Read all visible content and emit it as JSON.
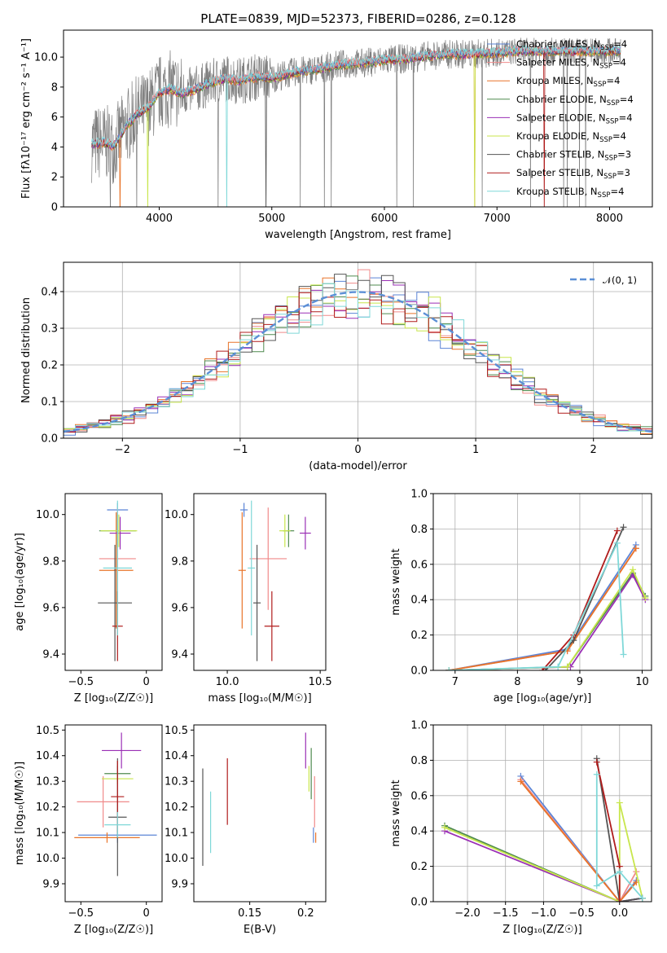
{
  "figure_title": "PLATE=0839, MJD=52373, FIBERID=0286, z=0.128",
  "colors": {
    "chabrier_miles": "#5b84d6",
    "salpeter_miles": "#f08a8a",
    "kroupa_miles": "#e8742a",
    "chabrier_elodie": "#4f8a4f",
    "salpeter_elodie": "#9a2fb5",
    "kroupa_elodie": "#c8e64c",
    "chabrier_stelib": "#555555",
    "salpeter_stelib": "#b01c1c",
    "kroupa_stelib": "#7fd8d8",
    "data": "#7f7f7f",
    "gaussian": "#5b8fd6"
  },
  "legend": [
    {
      "label": "Chabrier MILES, N",
      "sub": "SSP",
      "suffix": "=4",
      "color_key": "chabrier_miles"
    },
    {
      "label": "Salpeter MILES, N",
      "sub": "SSP",
      "suffix": "=4",
      "color_key": "salpeter_miles"
    },
    {
      "label": "Kroupa MILES, N",
      "sub": "SSP",
      "suffix": "=4",
      "color_key": "kroupa_miles"
    },
    {
      "label": "Chabrier ELODIE, N",
      "sub": "SSP",
      "suffix": "=4",
      "color_key": "chabrier_elodie"
    },
    {
      "label": "Salpeter ELODIE, N",
      "sub": "SSP",
      "suffix": "=4",
      "color_key": "salpeter_elodie"
    },
    {
      "label": "Kroupa ELODIE, N",
      "sub": "SSP",
      "suffix": "=4",
      "color_key": "kroupa_elodie"
    },
    {
      "label": "Chabrier STELIB, N",
      "sub": "SSP",
      "suffix": "=3",
      "color_key": "chabrier_stelib"
    },
    {
      "label": "Salpeter STELIB, N",
      "sub": "SSP",
      "suffix": "=3",
      "color_key": "salpeter_stelib"
    },
    {
      "label": "Kroupa STELIB, N",
      "sub": "SSP",
      "suffix": "=4",
      "color_key": "kroupa_stelib"
    }
  ],
  "chart_data": [
    {
      "id": "spectrum",
      "type": "line",
      "xlabel": "wavelength [Angstrom, rest frame]",
      "ylabel": "Flux [fλ10⁻¹⁷ erg cm⁻² s⁻¹ A⁻¹]",
      "xlim": [
        3150,
        8380
      ],
      "ylim": [
        0,
        11.8
      ],
      "xticks": [
        4000,
        5000,
        6000,
        7000,
        8000
      ],
      "yticks": [
        0,
        2,
        4,
        6,
        8,
        10
      ],
      "continuum": {
        "x": [
          3400,
          3500,
          3600,
          3700,
          3800,
          3900,
          4000,
          4100,
          4200,
          4300,
          4400,
          4500,
          4600,
          4700,
          4800,
          4900,
          5000,
          5200,
          5400,
          5600,
          5800,
          6000,
          6200,
          6400,
          6600,
          6800,
          7000,
          7200
        ],
        "y": [
          4.2,
          4.3,
          4.1,
          5.3,
          6.2,
          6.6,
          7.6,
          7.9,
          7.6,
          7.8,
          8.1,
          8.4,
          8.6,
          8.4,
          8.6,
          8.7,
          8.6,
          9.0,
          9.2,
          9.5,
          9.6,
          9.8,
          9.9,
          10.1,
          10.2,
          10.2,
          10.3,
          10.4
        ]
      },
      "data_range": [
        3400,
        8100
      ]
    },
    {
      "id": "residuals",
      "type": "histogram",
      "xlabel": "(data-model)/error",
      "ylabel": "Normed distribution",
      "xlim": [
        -2.5,
        2.5
      ],
      "ylim": [
        0,
        0.48
      ],
      "xticks": [
        -2,
        -1,
        0,
        1,
        2
      ],
      "yticks": [
        0.0,
        0.1,
        0.2,
        0.3,
        0.4
      ],
      "gaussian_label": "𝒩(0, 1)",
      "bin_width": 0.1
    },
    {
      "id": "age_vs_Z",
      "type": "errorbar",
      "xlabel": "Z [log₁₀(Z/Z☉)]",
      "ylabel": "age  [log₁₀(age/yr)]",
      "xlim": [
        -0.62,
        0.12
      ],
      "ylim": [
        9.33,
        10.09
      ],
      "xticks": [
        -0.5,
        0.0
      ],
      "yticks": [
        9.4,
        9.6,
        9.8,
        10.0
      ],
      "points": [
        {
          "series": "chabrier_miles",
          "x": -0.22,
          "xerr": 0.08,
          "y": 10.02,
          "yerr": 0.03
        },
        {
          "series": "salpeter_miles",
          "x": -0.22,
          "xerr": 0.14,
          "y": 9.81,
          "yerr": 0.22
        },
        {
          "series": "kroupa_miles",
          "x": -0.23,
          "xerr": 0.13,
          "y": 9.76,
          "yerr": 0.25
        },
        {
          "series": "chabrier_elodie",
          "x": -0.22,
          "xerr": 0.14,
          "y": 9.93,
          "yerr": 0.07
        },
        {
          "series": "salpeter_elodie",
          "x": -0.2,
          "xerr": 0.08,
          "y": 9.92,
          "yerr": 0.07
        },
        {
          "series": "kroupa_elodie",
          "x": -0.21,
          "xerr": 0.14,
          "y": 9.93,
          "yerr": 0.07
        },
        {
          "series": "chabrier_stelib",
          "x": -0.24,
          "xerr": 0.13,
          "y": 9.62,
          "yerr": 0.25
        },
        {
          "series": "salpeter_stelib",
          "x": -0.22,
          "xerr": 0.04,
          "y": 9.52,
          "yerr": 0.15
        },
        {
          "series": "kroupa_stelib",
          "x": -0.22,
          "xerr": 0.11,
          "y": 9.77,
          "yerr": 0.29
        }
      ]
    },
    {
      "id": "age_vs_mass",
      "type": "errorbar",
      "xlabel": "mass [log₁₀(M/M☉)]",
      "ylabel": "",
      "xlim": [
        9.82,
        10.53
      ],
      "ylim": [
        9.33,
        10.09
      ],
      "xticks": [
        10.0,
        10.5
      ],
      "yticks": [
        9.4,
        9.6,
        9.8,
        10.0
      ],
      "points": [
        {
          "series": "chabrier_miles",
          "x": 10.09,
          "xerr": 0.02,
          "y": 10.02,
          "yerr": 0.03
        },
        {
          "series": "salpeter_miles",
          "x": 10.22,
          "xerr": 0.1,
          "y": 9.81,
          "yerr": 0.22
        },
        {
          "series": "kroupa_miles",
          "x": 10.08,
          "xerr": 0.02,
          "y": 9.76,
          "yerr": 0.25
        },
        {
          "series": "chabrier_elodie",
          "x": 10.33,
          "xerr": 0.03,
          "y": 9.93,
          "yerr": 0.07
        },
        {
          "series": "salpeter_elodie",
          "x": 10.42,
          "xerr": 0.03,
          "y": 9.92,
          "yerr": 0.07
        },
        {
          "series": "kroupa_elodie",
          "x": 10.31,
          "xerr": 0.03,
          "y": 9.93,
          "yerr": 0.07
        },
        {
          "series": "chabrier_stelib",
          "x": 10.16,
          "xerr": 0.02,
          "y": 9.62,
          "yerr": 0.25
        },
        {
          "series": "salpeter_stelib",
          "x": 10.24,
          "xerr": 0.04,
          "y": 9.52,
          "yerr": 0.15
        },
        {
          "series": "kroupa_stelib",
          "x": 10.13,
          "xerr": 0.02,
          "y": 9.77,
          "yerr": 0.29
        }
      ]
    },
    {
      "id": "mass_weight_vs_age",
      "type": "line",
      "xlabel": "age  [log₁₀(age/yr)]",
      "ylabel": "mass weight",
      "xlim": [
        6.65,
        10.15
      ],
      "ylim": [
        0,
        1.0
      ],
      "xticks": [
        7,
        8,
        9,
        10
      ],
      "yticks": [
        0.0,
        0.2,
        0.4,
        0.6,
        0.8,
        1.0
      ],
      "series": [
        {
          "name": "chabrier_miles",
          "x": [
            6.9,
            8.8,
            9.9
          ],
          "y": [
            0.0,
            0.12,
            0.71
          ]
        },
        {
          "name": "salpeter_miles",
          "x": [
            6.9,
            8.8,
            9.9
          ],
          "y": [
            0.0,
            0.11,
            0.69
          ]
        },
        {
          "name": "kroupa_miles",
          "x": [
            6.9,
            8.8,
            9.9
          ],
          "y": [
            0.0,
            0.11,
            0.69
          ]
        },
        {
          "name": "chabrier_elodie",
          "x": [
            6.9,
            8.8,
            9.85,
            10.05
          ],
          "y": [
            0.0,
            0.02,
            0.55,
            0.42
          ]
        },
        {
          "name": "salpeter_elodie",
          "x": [
            6.9,
            8.85,
            9.85,
            10.05
          ],
          "y": [
            0.0,
            0.02,
            0.54,
            0.4
          ]
        },
        {
          "name": "kroupa_elodie",
          "x": [
            6.9,
            8.8,
            9.85,
            10.05
          ],
          "y": [
            0.0,
            0.02,
            0.57,
            0.41
          ]
        },
        {
          "name": "chabrier_stelib",
          "x": [
            8.45,
            8.9,
            9.7
          ],
          "y": [
            0.0,
            0.17,
            0.81
          ]
        },
        {
          "name": "salpeter_stelib",
          "x": [
            8.4,
            8.9,
            9.6
          ],
          "y": [
            0.0,
            0.2,
            0.79
          ]
        },
        {
          "name": "kroupa_stelib",
          "x": [
            6.9,
            8.65,
            9.6,
            9.7
          ],
          "y": [
            0.0,
            0.02,
            0.72,
            0.09
          ]
        }
      ]
    },
    {
      "id": "mass_vs_Z",
      "type": "errorbar",
      "xlabel": "Z [log₁₀(Z/Z☉)]",
      "ylabel": "mass [log₁₀(M/M☉)]",
      "xlim": [
        -0.62,
        0.12
      ],
      "ylim": [
        9.83,
        10.52
      ],
      "xticks": [
        -0.5,
        0.0
      ],
      "yticks": [
        9.9,
        10.0,
        10.1,
        10.2,
        10.3,
        10.4,
        10.5
      ],
      "points": [
        {
          "series": "chabrier_miles",
          "x": -0.22,
          "xerr": 0.3,
          "y": 10.09,
          "yerr": 0.03
        },
        {
          "series": "salpeter_miles",
          "x": -0.33,
          "xerr": 0.2,
          "y": 10.22,
          "yerr": 0.1
        },
        {
          "series": "kroupa_miles",
          "x": -0.3,
          "xerr": 0.25,
          "y": 10.08,
          "yerr": 0.02
        },
        {
          "series": "chabrier_elodie",
          "x": -0.22,
          "xerr": 0.1,
          "y": 10.33,
          "yerr": 0.03
        },
        {
          "series": "salpeter_elodie",
          "x": -0.19,
          "xerr": 0.15,
          "y": 10.42,
          "yerr": 0.07
        },
        {
          "series": "kroupa_elodie",
          "x": -0.22,
          "xerr": 0.12,
          "y": 10.31,
          "yerr": 0.02
        },
        {
          "series": "chabrier_stelib",
          "x": -0.22,
          "xerr": 0.07,
          "y": 10.16,
          "yerr": 0.23
        },
        {
          "series": "salpeter_stelib",
          "x": -0.22,
          "xerr": 0.05,
          "y": 10.24,
          "yerr": 0.14
        },
        {
          "series": "kroupa_stelib",
          "x": -0.22,
          "xerr": 0.1,
          "y": 10.13,
          "yerr": 0.05
        }
      ]
    },
    {
      "id": "mass_vs_ebv",
      "type": "errorbar",
      "xlabel": "E(B-V)",
      "ylabel": "",
      "xlim": [
        0.1,
        0.218
      ],
      "ylim": [
        9.83,
        10.52
      ],
      "xticks": [
        0.15,
        0.2
      ],
      "yticks": [
        9.9,
        10.0,
        10.1,
        10.2,
        10.3,
        10.4,
        10.5
      ],
      "points": [
        {
          "series": "chabrier_miles",
          "x": 0.207,
          "xerr": 0,
          "y": 10.09,
          "yerr": 0.03
        },
        {
          "series": "salpeter_miles",
          "x": 0.208,
          "xerr": 0,
          "y": 10.22,
          "yerr": 0.1
        },
        {
          "series": "kroupa_miles",
          "x": 0.209,
          "xerr": 0,
          "y": 10.08,
          "yerr": 0.02
        },
        {
          "series": "chabrier_elodie",
          "x": 0.205,
          "xerr": 0,
          "y": 10.33,
          "yerr": 0.1
        },
        {
          "series": "salpeter_elodie",
          "x": 0.2,
          "xerr": 0,
          "y": 10.42,
          "yerr": 0.07
        },
        {
          "series": "kroupa_elodie",
          "x": 0.203,
          "xerr": 0,
          "y": 10.31,
          "yerr": 0.05
        },
        {
          "series": "chabrier_stelib",
          "x": 0.108,
          "xerr": 0,
          "y": 10.16,
          "yerr": 0.19
        },
        {
          "series": "salpeter_stelib",
          "x": 0.13,
          "xerr": 0,
          "y": 10.26,
          "yerr": 0.13
        },
        {
          "series": "kroupa_stelib",
          "x": 0.115,
          "xerr": 0,
          "y": 10.14,
          "yerr": 0.12
        }
      ]
    },
    {
      "id": "mass_weight_vs_Z",
      "type": "line",
      "xlabel": "Z [log₁₀(Z/Z☉)]",
      "ylabel": "mass weight",
      "xlim": [
        -2.45,
        0.42
      ],
      "ylim": [
        0,
        1.0
      ],
      "xticks": [
        -2.0,
        -1.5,
        -1.0,
        -0.5,
        0.0
      ],
      "yticks": [
        0.0,
        0.2,
        0.4,
        0.6,
        0.8,
        1.0
      ],
      "series": [
        {
          "name": "chabrier_miles",
          "x": [
            -1.3,
            0.0,
            0.22
          ],
          "y": [
            0.71,
            0.0,
            0.12
          ]
        },
        {
          "name": "salpeter_miles",
          "x": [
            -1.3,
            0.0,
            0.22
          ],
          "y": [
            0.69,
            0.0,
            0.17
          ]
        },
        {
          "name": "kroupa_miles",
          "x": [
            -1.3,
            0.0,
            0.22
          ],
          "y": [
            0.68,
            0.0,
            0.11
          ]
        },
        {
          "name": "chabrier_elodie",
          "x": [
            -2.3,
            0.0,
            0.3
          ],
          "y": [
            0.43,
            0.0,
            0.02
          ]
        },
        {
          "name": "salpeter_elodie",
          "x": [
            -2.3,
            0.0,
            0.3
          ],
          "y": [
            0.4,
            0.0,
            0.02
          ]
        },
        {
          "name": "kroupa_elodie",
          "x": [
            -2.3,
            0.0,
            0.0,
            0.3
          ],
          "y": [
            0.42,
            0.0,
            0.56,
            0.02
          ]
        },
        {
          "name": "chabrier_stelib",
          "x": [
            -0.3,
            0.0,
            0.3
          ],
          "y": [
            0.81,
            0.0,
            0.02
          ]
        },
        {
          "name": "salpeter_stelib",
          "x": [
            -0.3,
            0.0,
            0.0
          ],
          "y": [
            0.79,
            0.2,
            0.0
          ]
        },
        {
          "name": "kroupa_stelib",
          "x": [
            -0.3,
            -0.3,
            0.0,
            0.3
          ],
          "y": [
            0.72,
            0.09,
            0.17,
            0.02
          ]
        }
      ]
    }
  ]
}
